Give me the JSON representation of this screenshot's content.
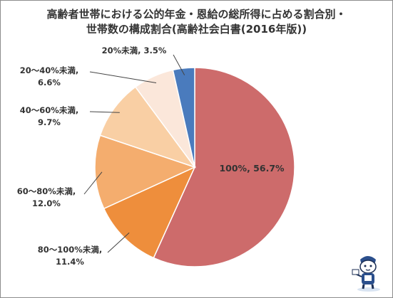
{
  "title_line1": "高齢者世帯における公的年金・恩給の総所得に占める割合別・",
  "title_line2": "世帯数の構成割合(高齢社会白書(2016年版))",
  "chart_data": {
    "type": "pie",
    "title": "高齢者世帯における公的年金・恩給の総所得に占める割合別・世帯数の構成割合(高齢社会白書(2016年版))",
    "start": "12 o'clock, clockwise",
    "slices": [
      {
        "label": "100%",
        "value": 56.7,
        "color": "#cd6b6b",
        "text_line1": "100%, 56.7%",
        "text_line2": ""
      },
      {
        "label": "80～100%未満",
        "value": 11.4,
        "color": "#ee8e3c",
        "text_line1": "80～100%未満,",
        "text_line2": "11.4%"
      },
      {
        "label": "60～80%未満",
        "value": 12.0,
        "color": "#f4ad6e",
        "text_line1": "60～80%未満,",
        "text_line2": "12.0%"
      },
      {
        "label": "40～60%未満",
        "value": 9.7,
        "color": "#f9cfa4",
        "text_line1": "40～60%未満,",
        "text_line2": "9.7%"
      },
      {
        "label": "20～40%未満",
        "value": 6.6,
        "color": "#fbe7da",
        "text_line1": "20～40%未満,",
        "text_line2": "6.6%"
      },
      {
        "label": "20%未満",
        "value": 3.5,
        "color": "#4a7bbd",
        "text_line1": "20%未満, 3.5%",
        "text_line2": ""
      }
    ]
  }
}
